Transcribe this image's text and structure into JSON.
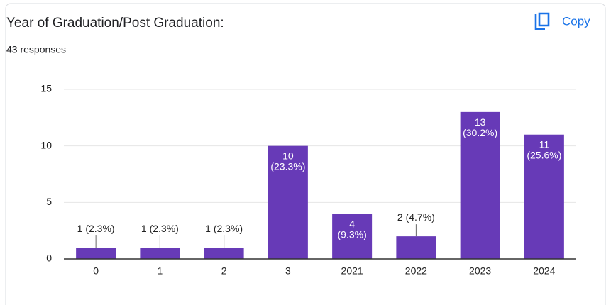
{
  "chart_data": {
    "type": "bar",
    "title": "Year of Graduation/Post Graduation:",
    "subtitle": "43 responses",
    "button": "Copy",
    "categories": [
      "0",
      "1",
      "2",
      "3",
      "2021",
      "2022",
      "2023",
      "2024"
    ],
    "values": [
      1,
      1,
      1,
      10,
      4,
      2,
      13,
      11
    ],
    "value_labels": [
      "1 (2.3%)",
      "1 (2.3%)",
      "1 (2.3%)",
      "10 (23.3%)",
      "4 (9.3%)",
      "2 (4.7%)",
      "13 (30.2%)",
      "11 (25.6%)"
    ],
    "color": "#673ab7",
    "ylim": [
      0,
      15
    ],
    "yticks": [
      0,
      5,
      10,
      15
    ],
    "grid": true
  }
}
